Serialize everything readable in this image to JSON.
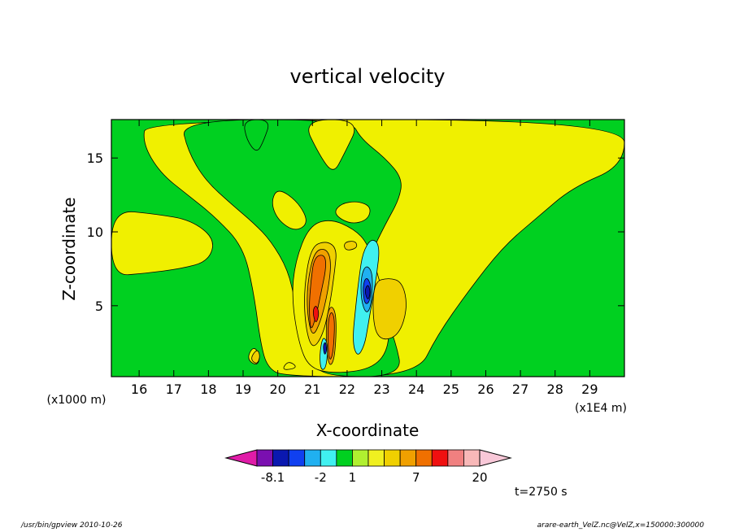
{
  "chart_data": {
    "type": "heatmap",
    "title": "vertical velocity",
    "xlabel": "X-coordinate",
    "ylabel": "Z-coordinate",
    "x_unit_label": "(x1E4 m)",
    "y_unit_label": "(x1000 m)",
    "xlim": [
      15.2,
      30.0
    ],
    "ylim": [
      0.2,
      17.6
    ],
    "x_ticks": [
      16,
      17,
      18,
      19,
      20,
      21,
      22,
      23,
      24,
      25,
      26,
      27,
      28,
      29
    ],
    "y_ticks": [
      5,
      10,
      15
    ],
    "time_label": "t=2750 s",
    "colorbar": {
      "colors": [
        "#e01ca8",
        "#7a0fb0",
        "#0a18b0",
        "#1040f0",
        "#20b0f0",
        "#40f0f0",
        "#00d020",
        "#b0f030",
        "#f0f020",
        "#f0d000",
        "#f0a000",
        "#f07000",
        "#f01010",
        "#f08080",
        "#f8b8b8",
        "#f8c8d8"
      ],
      "labels": [
        {
          "text": "-8.1",
          "index": 2
        },
        {
          "text": "-2",
          "index": 5
        },
        {
          "text": "1",
          "index": 7
        },
        {
          "text": "7",
          "index": 11
        },
        {
          "text": "20",
          "index": 15
        }
      ]
    },
    "regions": [
      {
        "label": "positive",
        "color": "#f0f000",
        "shape": [
          [
            16.2,
            17.6
          ],
          [
            16.1,
            16.0
          ],
          [
            16.6,
            14.0
          ],
          [
            17.4,
            12.5
          ],
          [
            18.2,
            11.0
          ],
          [
            19.0,
            9.0
          ],
          [
            19.3,
            6.0
          ],
          [
            19.5,
            2.5
          ],
          [
            19.7,
            0.8
          ],
          [
            20.2,
            0.2
          ],
          [
            24.0,
            0.2
          ],
          [
            24.6,
            3.0
          ],
          [
            25.5,
            6.0
          ],
          [
            26.5,
            9.0
          ],
          [
            27.5,
            11.0
          ],
          [
            28.5,
            13.0
          ],
          [
            30.0,
            14.5
          ],
          [
            30.0,
            17.6
          ]
        ]
      },
      {
        "label": "positive",
        "color": "#f0f000",
        "shape": [
          [
            15.2,
            11.5
          ],
          [
            16.5,
            11.2
          ],
          [
            17.5,
            10.8
          ],
          [
            18.2,
            9.5
          ],
          [
            18.0,
            8.0
          ],
          [
            17.2,
            7.5
          ],
          [
            16.2,
            7.2
          ],
          [
            15.2,
            7.0
          ]
        ]
      },
      {
        "label": "near-zero",
        "color": "#00d020",
        "shape": [
          [
            17.2,
            17.6
          ],
          [
            17.4,
            15.5
          ],
          [
            17.9,
            13.5
          ],
          [
            18.7,
            11.8
          ],
          [
            19.3,
            10.6
          ],
          [
            19.8,
            9.4
          ],
          [
            20.3,
            7.4
          ],
          [
            20.5,
            5.2
          ],
          [
            20.8,
            3.0
          ],
          [
            21.0,
            1.4
          ],
          [
            21.3,
            0.2
          ],
          [
            23.6,
            0.2
          ],
          [
            23.4,
            2.6
          ],
          [
            23.0,
            4.8
          ],
          [
            22.7,
            6.6
          ],
          [
            22.7,
            8.6
          ],
          [
            23.1,
            10.5
          ],
          [
            23.5,
            12.2
          ],
          [
            23.6,
            13.6
          ],
          [
            23.1,
            15.0
          ],
          [
            22.4,
            16.3
          ],
          [
            22.1,
            17.6
          ]
        ]
      },
      {
        "label": "near-zero",
        "color": "#00d020",
        "shape": [
          [
            19.0,
            17.6
          ],
          [
            19.1,
            16.2
          ],
          [
            19.4,
            15.3
          ],
          [
            19.6,
            16.2
          ],
          [
            19.8,
            17.6
          ]
        ]
      },
      {
        "label": "positive",
        "color": "#f0f000",
        "shape": [
          [
            20.7,
            17.6
          ],
          [
            21.2,
            15.2
          ],
          [
            21.6,
            13.9
          ],
          [
            21.9,
            15.2
          ],
          [
            22.4,
            17.6
          ]
        ]
      },
      {
        "label": "positive",
        "color": "#f0f000",
        "shape": [
          [
            20.0,
            13.0
          ],
          [
            20.6,
            12.0
          ],
          [
            20.9,
            10.6
          ],
          [
            20.5,
            10.0
          ],
          [
            20.0,
            10.8
          ],
          [
            19.8,
            12.0
          ]
        ]
      },
      {
        "label": "positive",
        "color": "#f0f000",
        "shape": [
          [
            21.6,
            11.2
          ],
          [
            22.1,
            10.5
          ],
          [
            22.6,
            10.8
          ],
          [
            22.7,
            11.7
          ],
          [
            22.3,
            12.1
          ],
          [
            21.8,
            11.9
          ]
        ]
      },
      {
        "label": "positive",
        "color": "#f0f000",
        "shape": [
          [
            20.9,
            10.4
          ],
          [
            21.5,
            10.9
          ],
          [
            22.2,
            10.2
          ],
          [
            22.6,
            9.2
          ],
          [
            22.9,
            7.0
          ],
          [
            23.2,
            4.4
          ],
          [
            23.2,
            2.0
          ],
          [
            22.7,
            0.7
          ],
          [
            21.6,
            0.4
          ],
          [
            20.9,
            0.8
          ],
          [
            20.6,
            2.5
          ],
          [
            20.4,
            5.5
          ],
          [
            20.5,
            8.0
          ]
        ]
      },
      {
        "label": "positive",
        "color": "#f0f000",
        "shape": [
          [
            19.1,
            1.4
          ],
          [
            19.3,
            2.3
          ],
          [
            19.5,
            1.6
          ],
          [
            19.4,
            0.9
          ]
        ]
      },
      {
        "label": "positive",
        "color": "#f0f000",
        "shape": [
          [
            20.1,
            0.6
          ],
          [
            20.3,
            1.3
          ],
          [
            20.6,
            0.8
          ]
        ]
      },
      {
        "label": "positive",
        "color": "#f0d000",
        "shape": [
          [
            22.75,
            6.6
          ],
          [
            23.2,
            6.9
          ],
          [
            23.6,
            6.6
          ],
          [
            23.75,
            4.9
          ],
          [
            23.5,
            3.0
          ],
          [
            23.0,
            2.6
          ],
          [
            22.75,
            3.6
          ]
        ]
      },
      {
        "label": "positive",
        "color": "#f0d000",
        "shape": [
          [
            19.2,
            1.4
          ],
          [
            19.4,
            2.1
          ],
          [
            19.5,
            1.6
          ],
          [
            19.4,
            1.0
          ]
        ]
      },
      {
        "label": "positive",
        "color": "#f0d000",
        "shape": [
          [
            20.95,
            9.0
          ],
          [
            21.4,
            9.4
          ],
          [
            21.7,
            8.9
          ],
          [
            21.65,
            7.5
          ],
          [
            21.5,
            5.0
          ],
          [
            21.3,
            3.0
          ],
          [
            21.0,
            2.0
          ],
          [
            20.8,
            3.5
          ],
          [
            20.75,
            6.0
          ]
        ]
      },
      {
        "label": "positive",
        "color": "#f0d000",
        "shape": [
          [
            21.9,
            9.3
          ],
          [
            22.25,
            9.4
          ],
          [
            22.3,
            8.9
          ],
          [
            21.95,
            8.7
          ]
        ]
      },
      {
        "label": "positive",
        "color": "#f0a000",
        "shape": [
          [
            21.05,
            8.7
          ],
          [
            21.4,
            8.9
          ],
          [
            21.55,
            8.0
          ],
          [
            21.45,
            6.0
          ],
          [
            21.25,
            4.0
          ],
          [
            21.0,
            2.8
          ],
          [
            20.85,
            4.4
          ],
          [
            20.85,
            6.5
          ]
        ]
      },
      {
        "label": "positive",
        "color": "#f0a000",
        "shape": [
          [
            21.4,
            4.3
          ],
          [
            21.55,
            5.1
          ],
          [
            21.7,
            4.3
          ],
          [
            21.65,
            1.5
          ],
          [
            21.5,
            0.8
          ],
          [
            21.4,
            2.0
          ]
        ]
      },
      {
        "label": "positive",
        "color": "#f07000",
        "shape": [
          [
            21.05,
            8.3
          ],
          [
            21.35,
            8.5
          ],
          [
            21.4,
            7.6
          ],
          [
            21.25,
            5.9
          ],
          [
            21.1,
            4.2
          ],
          [
            20.95,
            3.2
          ],
          [
            20.9,
            4.8
          ],
          [
            20.95,
            6.6
          ]
        ]
      },
      {
        "label": "positive",
        "color": "#f07000",
        "shape": [
          [
            21.45,
            4.0
          ],
          [
            21.55,
            4.7
          ],
          [
            21.65,
            4.0
          ],
          [
            21.6,
            1.8
          ],
          [
            21.5,
            1.2
          ],
          [
            21.45,
            2.2
          ]
        ]
      },
      {
        "label": "positive",
        "color": "#f01010",
        "shape": [
          [
            21.0,
            4.6
          ],
          [
            21.1,
            5.1
          ],
          [
            21.2,
            4.5
          ],
          [
            21.1,
            3.7
          ]
        ]
      },
      {
        "label": "negative",
        "color": "#40f0f0",
        "shape": [
          [
            22.45,
            8.6
          ],
          [
            22.7,
            9.6
          ],
          [
            22.95,
            9.1
          ],
          [
            22.85,
            7.0
          ],
          [
            22.7,
            5.0
          ],
          [
            22.6,
            3.6
          ],
          [
            22.5,
            2.3
          ],
          [
            22.3,
            1.5
          ],
          [
            22.15,
            2.5
          ],
          [
            22.25,
            5.0
          ],
          [
            22.35,
            7.0
          ]
        ]
      },
      {
        "label": "negative",
        "color": "#40f0f0",
        "shape": [
          [
            21.2,
            1.6
          ],
          [
            21.3,
            3.0
          ],
          [
            21.45,
            2.4
          ],
          [
            21.4,
            0.8
          ],
          [
            21.25,
            0.6
          ]
        ]
      },
      {
        "label": "negative",
        "color": "#20b0f0",
        "shape": [
          [
            22.4,
            7.0
          ],
          [
            22.55,
            7.8
          ],
          [
            22.75,
            7.2
          ],
          [
            22.7,
            5.0
          ],
          [
            22.55,
            4.4
          ],
          [
            22.4,
            5.4
          ]
        ]
      },
      {
        "label": "negative",
        "color": "#1040f0",
        "shape": [
          [
            22.45,
            6.3
          ],
          [
            22.55,
            7.0
          ],
          [
            22.7,
            6.4
          ],
          [
            22.65,
            5.2
          ],
          [
            22.5,
            5.1
          ]
        ]
      },
      {
        "label": "negative",
        "color": "#0a18b0",
        "shape": [
          [
            22.5,
            6.0
          ],
          [
            22.6,
            6.5
          ],
          [
            22.68,
            5.9
          ],
          [
            22.6,
            5.3
          ]
        ]
      },
      {
        "label": "negative",
        "color": "#0a18b0",
        "shape": [
          [
            21.3,
            2.3
          ],
          [
            21.38,
            2.6
          ],
          [
            21.42,
            2.0
          ],
          [
            21.35,
            1.6
          ]
        ]
      }
    ]
  },
  "footer": {
    "left": "/usr/bin/gpview   2010-10-26",
    "right": "arare-earth_VelZ.nc@VelZ,x=150000:300000"
  }
}
